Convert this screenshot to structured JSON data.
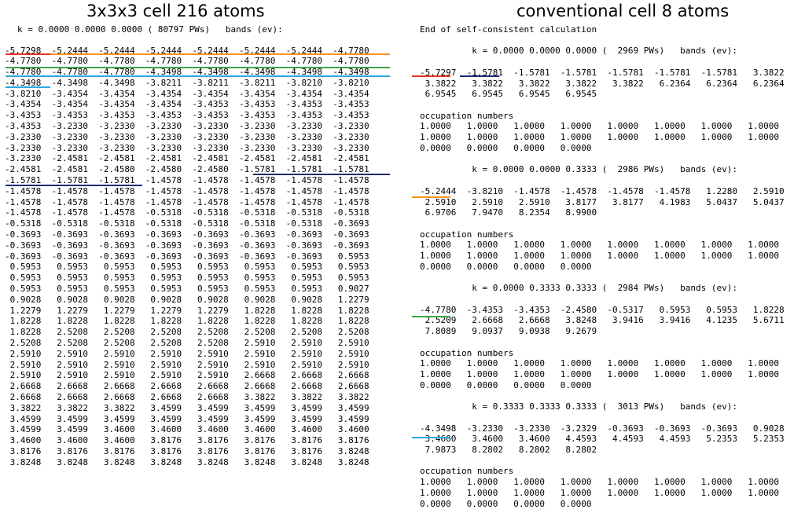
{
  "colors": {
    "red": "#e8322b",
    "orange": "#f6961e",
    "green": "#3aa64a",
    "lightblue": "#29a8e0",
    "navy": "#1d2b7a"
  },
  "left": {
    "title": "3x3x3 cell 216 atoms",
    "header": "k = 0.0000 0.0000 0.0000 ( 80797 PWs)   bands (ev):",
    "rows": [
      "-5.7298  -5.2444  -5.2444  -5.2444  -5.2444  -5.2444  -5.2444  -4.7780",
      "-4.7780  -4.7780  -4.7780  -4.7780  -4.7780  -4.7780  -4.7780  -4.7780",
      "-4.7780  -4.7780  -4.7780  -4.3498  -4.3498  -4.3498  -4.3498  -4.3498",
      "-4.3498  -4.3498  -4.3498  -3.8211  -3.8211  -3.8211  -3.8210  -3.8210",
      "-3.8210  -3.4354  -3.4354  -3.4354  -3.4354  -3.4354  -3.4354  -3.4354",
      "-3.4354  -3.4354  -3.4354  -3.4354  -3.4353  -3.4353  -3.4353  -3.4353",
      "-3.4353  -3.4353  -3.4353  -3.4353  -3.4353  -3.4353  -3.4353  -3.4353",
      "-3.4353  -3.2330  -3.2330  -3.2330  -3.2330  -3.2330  -3.2330  -3.2330",
      "-3.2330  -3.2330  -3.2330  -3.2330  -3.2330  -3.2330  -3.2330  -3.2330",
      "-3.2330  -3.2330  -3.2330  -3.2330  -3.2330  -3.2330  -3.2330  -3.2330",
      "-3.2330  -2.4581  -2.4581  -2.4581  -2.4581  -2.4581  -2.4581  -2.4581",
      "-2.4581  -2.4581  -2.4580  -2.4580  -2.4580  -1.5781  -1.5781  -1.5781",
      "-1.5781  -1.5781  -1.5781  -1.4578  -1.4578  -1.4578  -1.4578  -1.4578",
      "-1.4578  -1.4578  -1.4578  -1.4578  -1.4578  -1.4578  -1.4578  -1.4578",
      "-1.4578  -1.4578  -1.4578  -1.4578  -1.4578  -1.4578  -1.4578  -1.4578",
      "-1.4578  -1.4578  -1.4578  -0.5318  -0.5318  -0.5318  -0.5318  -0.5318",
      "-0.5318  -0.5318  -0.5318  -0.5318  -0.5318  -0.5318  -0.5318  -0.3693",
      "-0.3693  -0.3693  -0.3693  -0.3693  -0.3693  -0.3693  -0.3693  -0.3693",
      "-0.3693  -0.3693  -0.3693  -0.3693  -0.3693  -0.3693  -0.3693  -0.3693",
      "-0.3693  -0.3693  -0.3693  -0.3693  -0.3693  -0.3693  -0.3693   0.5953",
      " 0.5953   0.5953   0.5953   0.5953   0.5953   0.5953   0.5953   0.5953",
      " 0.5953   0.5953   0.5953   0.5953   0.5953   0.5953   0.5953   0.5953",
      " 0.5953   0.5953   0.5953   0.5953   0.5953   0.5953   0.5953   0.9027",
      " 0.9028   0.9028   0.9028   0.9028   0.9028   0.9028   0.9028   1.2279",
      " 1.2279   1.2279   1.2279   1.2279   1.2279   1.8228   1.8228   1.8228",
      " 1.8228   1.8228   1.8228   1.8228   1.8228   1.8228   1.8228   1.8228",
      " 1.8228   2.5208   2.5208   2.5208   2.5208   2.5208   2.5208   2.5208",
      " 2.5208   2.5208   2.5208   2.5208   2.5208   2.5910   2.5910   2.5910",
      " 2.5910   2.5910   2.5910   2.5910   2.5910   2.5910   2.5910   2.5910",
      " 2.5910   2.5910   2.5910   2.5910   2.5910   2.5910   2.5910   2.5910",
      " 2.5910   2.5910   2.5910   2.5910   2.5910   2.6668   2.6668   2.6668",
      " 2.6668   2.6668   2.6668   2.6668   2.6668   2.6668   2.6668   2.6668",
      " 2.6668   2.6668   2.6668   2.6668   2.6668   3.3822   3.3822   3.3822",
      " 3.3822   3.3822   3.3822   3.4599   3.4599   3.4599   3.4599   3.4599",
      " 3.4599   3.4599   3.4599   3.4599   3.4599   3.4599   3.4599   3.4599",
      " 3.4599   3.4599   3.4600   3.4600   3.4600   3.4600   3.4600   3.4600",
      " 3.4600   3.4600   3.4600   3.8176   3.8176   3.8176   3.8176   3.8176",
      " 3.8176   3.8176   3.8176   3.8176   3.8176   3.8176   3.8176   3.8248",
      " 3.8248   3.8248   3.8248   3.8248   3.8248   3.8248   3.8248   3.8248"
    ]
  },
  "right": {
    "title": "conventional cell 8 atoms",
    "lines": [
      "End of self-consistent calculation",
      "",
      "          k = 0.0000 0.0000 0.0000 (  2969 PWs)   bands (ev):",
      "",
      "-5.7297  -1.5781  -1.5781  -1.5781  -1.5781  -1.5781  -1.5781   3.3822",
      " 3.3822   3.3822   3.3822   3.3822   3.3822   6.2364   6.2364   6.2364",
      " 6.9545   6.9545   6.9545   6.9545",
      "",
      "occupation numbers",
      "1.0000   1.0000   1.0000   1.0000   1.0000   1.0000   1.0000   1.0000",
      "1.0000   1.0000   1.0000   1.0000   1.0000   1.0000   1.0000   1.0000",
      "0.0000   0.0000   0.0000   0.0000",
      "",
      "          k = 0.0000 0.0000 0.3333 (  2986 PWs)   bands (ev):",
      "",
      "-5.2444  -3.8210  -1.4578  -1.4578  -1.4578  -1.4578   1.2280   2.5910",
      " 2.5910   2.5910   2.5910   3.8177   3.8177   4.1983   5.0437   5.0437",
      " 6.9706   7.9470   8.2354   8.9900",
      "",
      "occupation numbers",
      "1.0000   1.0000   1.0000   1.0000   1.0000   1.0000   1.0000   1.0000",
      "1.0000   1.0000   1.0000   1.0000   1.0000   1.0000   1.0000   1.0000",
      "0.0000   0.0000   0.0000   0.0000",
      "",
      "          k = 0.0000 0.3333 0.3333 (  2984 PWs)   bands (ev):",
      "",
      "-4.7780  -3.4353  -3.4353  -2.4580  -0.5317   0.5953   0.5953   1.8228",
      " 2.5209   2.6668   2.6668   3.8248   3.9416   3.9416   4.1235   5.6711",
      " 7.8089   9.0937   9.0938   9.2679",
      "",
      "occupation numbers",
      "1.0000   1.0000   1.0000   1.0000   1.0000   1.0000   1.0000   1.0000",
      "1.0000   1.0000   1.0000   1.0000   1.0000   1.0000   1.0000   1.0000",
      "0.0000   0.0000   0.0000   0.0000",
      "",
      "          k = 0.3333 0.3333 0.3333 (  3013 PWs)   bands (ev):",
      "",
      "-4.3498  -3.2330  -3.2330  -3.2329  -0.3693  -0.3693  -0.3693   0.9028",
      " 3.4600   3.4600   3.4600   4.4593   4.4593   4.4593   5.2353   5.2353",
      " 7.9873   8.2802   8.2802   8.2802",
      "",
      "occupation numbers",
      "1.0000   1.0000   1.0000   1.0000   1.0000   1.0000   1.0000   1.0000",
      "1.0000   1.0000   1.0000   1.0000   1.0000   1.0000   1.0000   1.0000",
      "0.0000   0.0000   0.0000   0.0000"
    ]
  }
}
